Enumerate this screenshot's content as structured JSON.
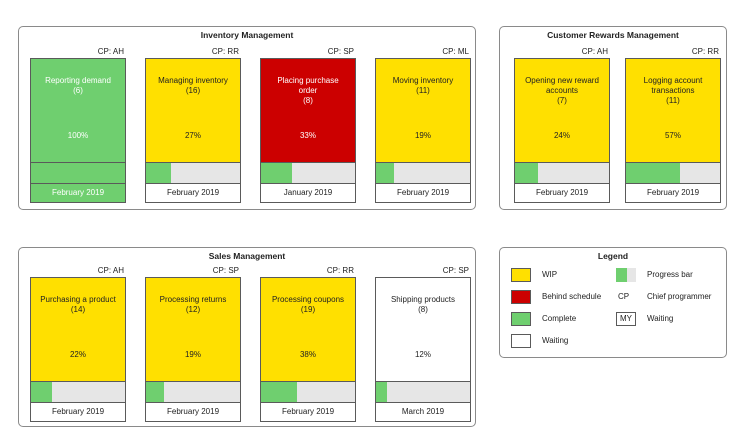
{
  "inventory": {
    "title": "Inventory Management",
    "cards": [
      {
        "cp": "CP: AH",
        "name": "Reporting demand",
        "count": "(6)",
        "pct": "100%",
        "progress": 1.0,
        "date": "February 2019",
        "status": "complete"
      },
      {
        "cp": "CP: RR",
        "name": "Managing inventory",
        "count": "(16)",
        "pct": "27%",
        "progress": 0.27,
        "date": "February 2019",
        "status": "wip"
      },
      {
        "cp": "CP: SP",
        "name": "Placing purchase order",
        "count": "(8)",
        "pct": "33%",
        "progress": 0.33,
        "date": "January 2019",
        "status": "behind"
      },
      {
        "cp": "CP: ML",
        "name": "Moving inventory",
        "count": "(11)",
        "pct": "19%",
        "progress": 0.19,
        "date": "February 2019",
        "status": "wip"
      }
    ]
  },
  "rewards": {
    "title": "Customer Rewards Management",
    "cards": [
      {
        "cp": "CP: AH",
        "name": "Opening new reward accounts",
        "count": "(7)",
        "pct": "24%",
        "progress": 0.24,
        "date": "February 2019",
        "status": "wip"
      },
      {
        "cp": "CP: RR",
        "name": "Logging account transactions",
        "count": "(11)",
        "pct": "57%",
        "progress": 0.57,
        "date": "February 2019",
        "status": "wip"
      }
    ]
  },
  "sales": {
    "title": "Sales Management",
    "cards": [
      {
        "cp": "CP: AH",
        "name": "Purchasing a product",
        "count": "(14)",
        "pct": "22%",
        "progress": 0.22,
        "date": "February 2019",
        "status": "wip"
      },
      {
        "cp": "CP: SP",
        "name": "Processing returns",
        "count": "(12)",
        "pct": "19%",
        "progress": 0.19,
        "date": "February 2019",
        "status": "wip"
      },
      {
        "cp": "CP: RR",
        "name": "Processing coupons",
        "count": "(19)",
        "pct": "38%",
        "progress": 0.38,
        "date": "February 2019",
        "status": "wip"
      },
      {
        "cp": "CP: SP",
        "name": "Shipping products",
        "count": "(8)",
        "pct": "12%",
        "progress": 0.12,
        "date": "March 2019",
        "status": "waiting"
      }
    ]
  },
  "legend": {
    "title": "Legend",
    "wip": "WIP",
    "behind": "Behind schedule",
    "complete": "Complete",
    "waiting": "Waiting",
    "progress_bar": "Progress bar",
    "cp_abbr": "CP",
    "chief_programmer": "Chief programmer",
    "my_abbr": "MY",
    "waiting2": "Waiting"
  },
  "colors": {
    "wip": "#ffe000",
    "behind": "#cc0000",
    "complete": "#6fcf6f",
    "waiting": "#ffffff"
  }
}
